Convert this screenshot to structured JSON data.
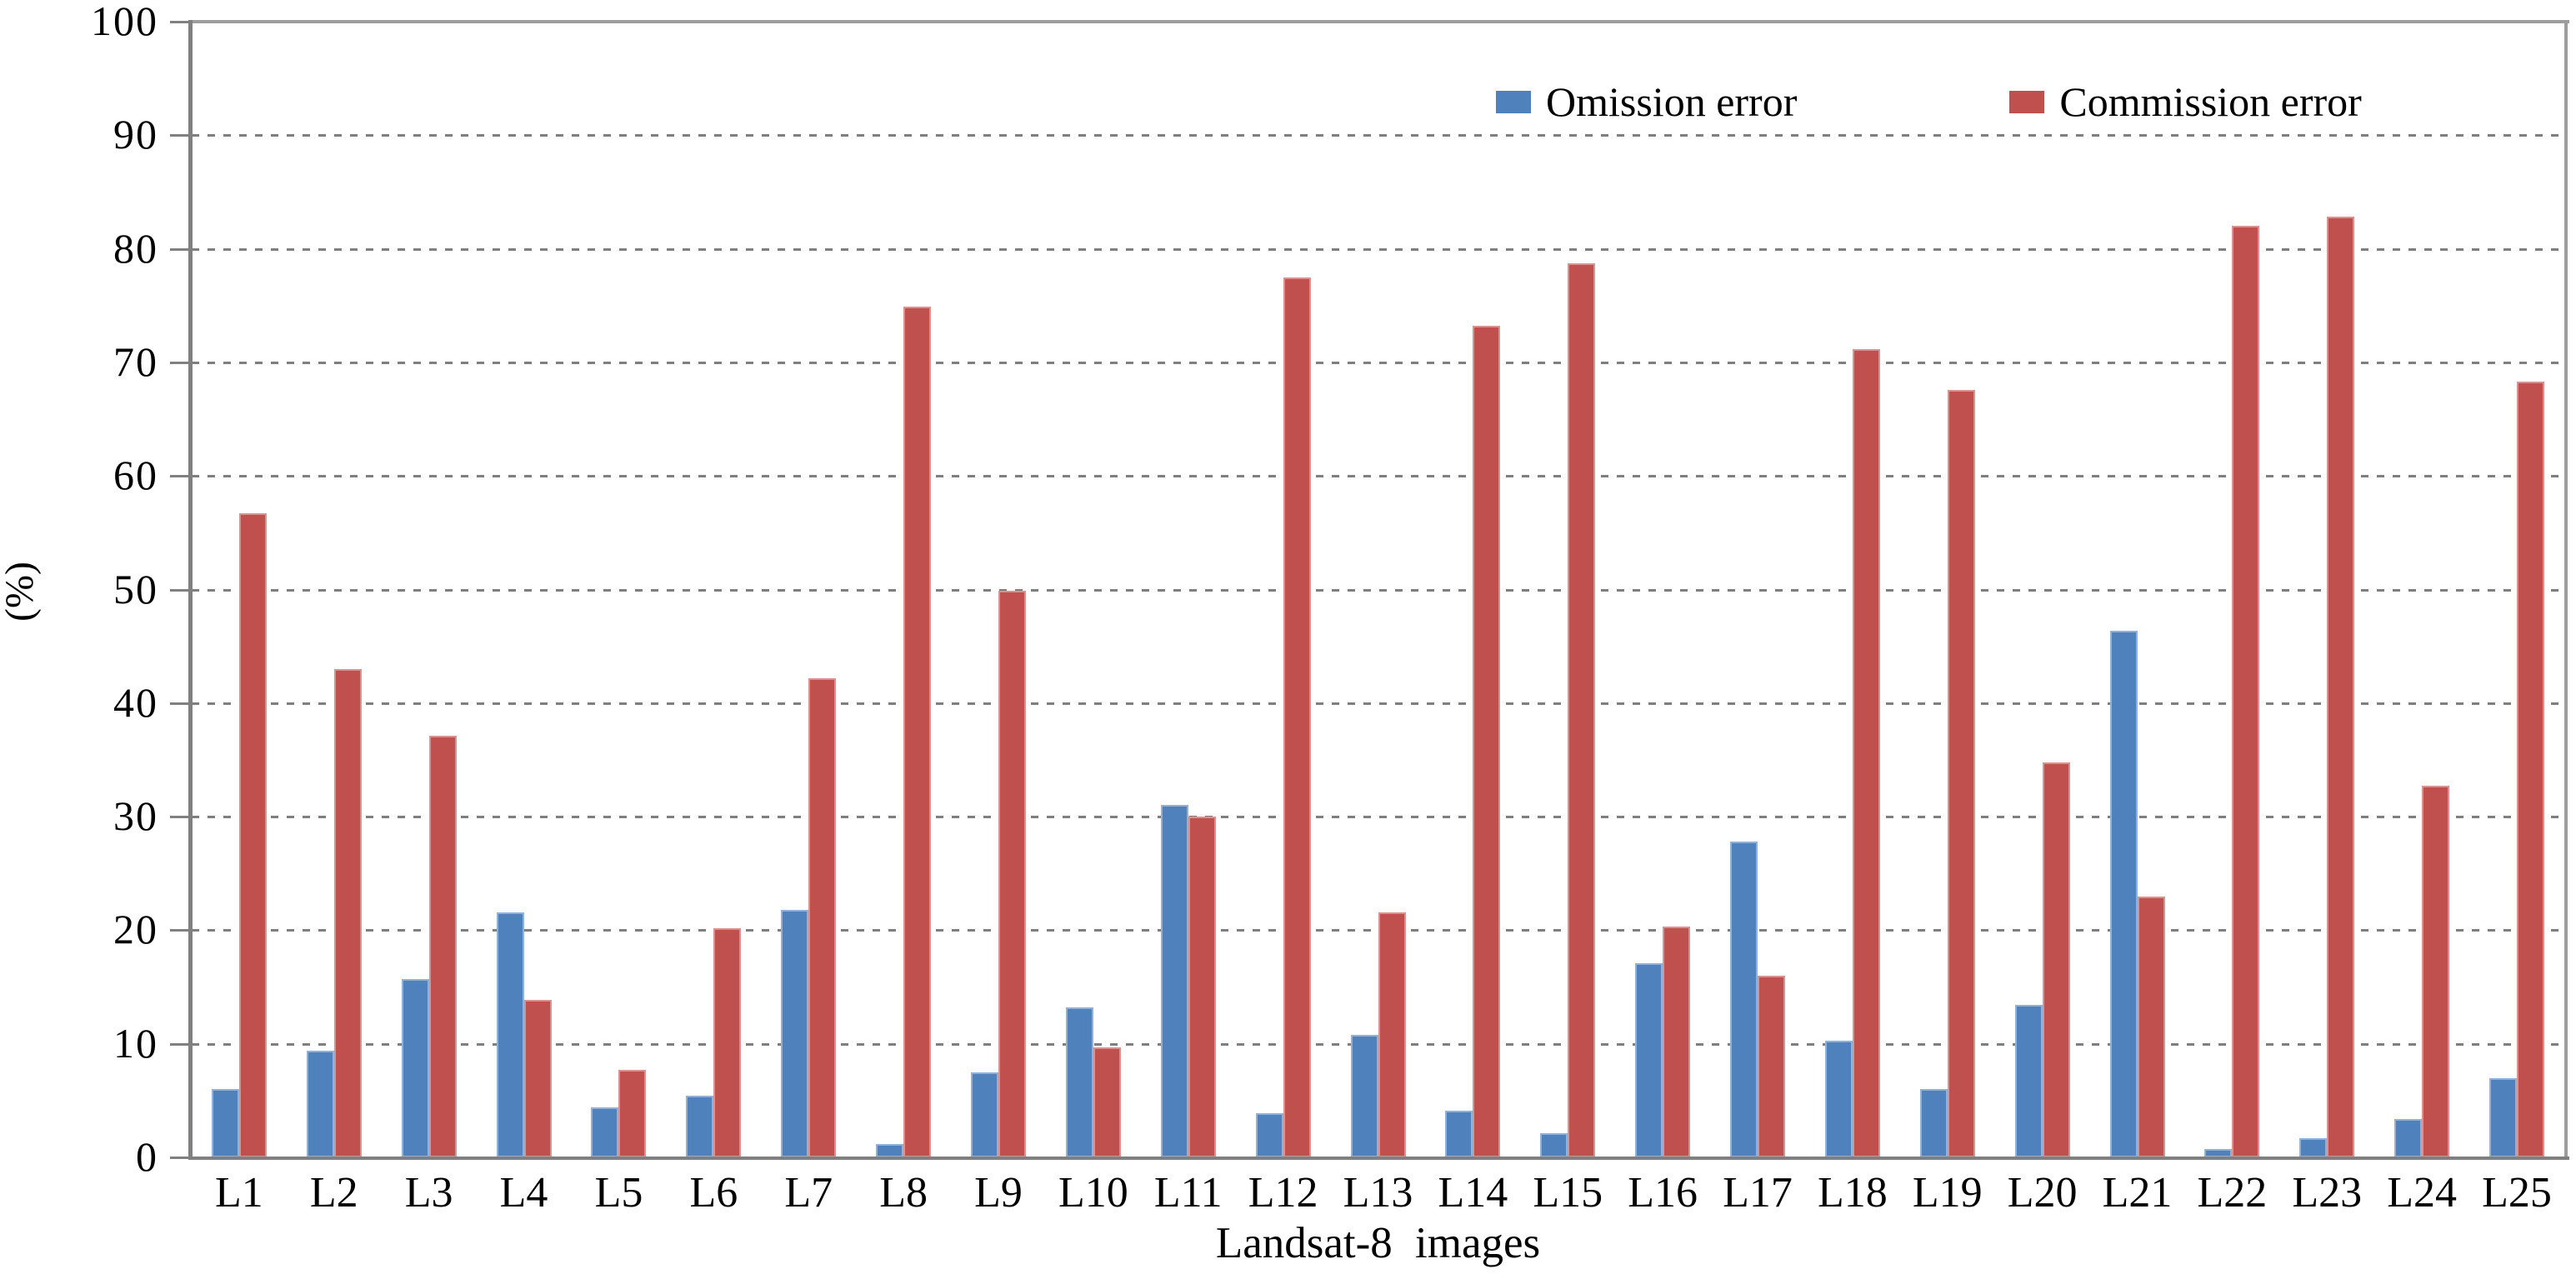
{
  "chart_data": {
    "type": "bar",
    "title": "",
    "xlabel": "Landsat-8 images",
    "ylabel": "(%)",
    "categories": [
      "L1",
      "L2",
      "L3",
      "L4",
      "L5",
      "L6",
      "L7",
      "L8",
      "L9",
      "L10",
      "L11",
      "L12",
      "L13",
      "L14",
      "L15",
      "L16",
      "L17",
      "L18",
      "L19",
      "L20",
      "L21",
      "L22",
      "L23",
      "L24",
      "L25"
    ],
    "series": [
      {
        "name": "Omission error",
        "color": "#4F81BD",
        "values": [
          6.0,
          9.4,
          15.7,
          21.6,
          4.4,
          5.4,
          21.8,
          1.2,
          7.5,
          13.2,
          31.0,
          3.9,
          10.8,
          4.1,
          2.1,
          17.1,
          27.8,
          10.3,
          6.0,
          13.4,
          46.4,
          0.7,
          1.7,
          3.4,
          7.0
        ]
      },
      {
        "name": "Commission error",
        "color": "#C0504D",
        "values": [
          56.7,
          43.0,
          37.1,
          13.9,
          7.7,
          20.2,
          42.2,
          74.9,
          49.9,
          9.7,
          30.0,
          77.5,
          21.6,
          73.2,
          78.7,
          20.3,
          16.0,
          71.2,
          67.6,
          34.8,
          23.0,
          82.0,
          82.8,
          32.7,
          68.3
        ]
      }
    ],
    "ylim": [
      0,
      100
    ],
    "yticks": [
      0,
      10,
      20,
      30,
      40,
      50,
      60,
      70,
      80,
      90,
      100
    ],
    "grid": "horizontal-dashed",
    "legend_position": "inside-top-right",
    "colors": {
      "gridline": "#7f7f7f",
      "axis": "#808080",
      "plot_border": "#a3a3a3",
      "text": "#000000",
      "background": "#ffffff"
    }
  }
}
